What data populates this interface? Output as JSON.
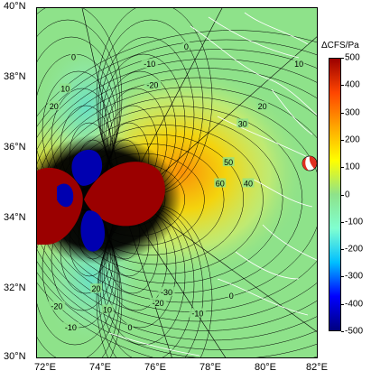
{
  "map": {
    "lat_labels": [
      "40°N",
      "38°N",
      "36°N",
      "34°N",
      "32°N",
      "30°N"
    ],
    "lon_labels": [
      "72°E",
      "74°E",
      "76°E",
      "78°E",
      "80°E",
      "82°E"
    ],
    "extent": {
      "lon_min": 72,
      "lon_max": 82,
      "lat_min": 30,
      "lat_max": 40
    },
    "background_color": "#8ee28a",
    "fault_color": "#ffffff"
  },
  "colorbar": {
    "title": "ΔCFS/Pa",
    "ticks": [
      "500",
      "400",
      "300",
      "200",
      "100",
      "0",
      "-100",
      "-200",
      "-300",
      "-400",
      "-500"
    ],
    "range": [
      -500,
      500
    ],
    "colors": [
      "#00007f",
      "#0000ff",
      "#00bfff",
      "#80ffd0",
      "#8ee28a",
      "#ffff00",
      "#ffa500",
      "#ff4500",
      "#9b0000"
    ]
  },
  "contour_labels": [
    {
      "text": "0",
      "lon": 73.3,
      "lat": 38.6
    },
    {
      "text": "10",
      "lon": 73.0,
      "lat": 37.7
    },
    {
      "text": "20",
      "lon": 72.6,
      "lat": 37.2
    },
    {
      "text": "-10",
      "lon": 76.0,
      "lat": 38.4
    },
    {
      "text": "-20",
      "lon": 76.1,
      "lat": 37.8
    },
    {
      "text": "0",
      "lon": 77.3,
      "lat": 38.9
    },
    {
      "text": "10",
      "lon": 81.3,
      "lat": 38.4
    },
    {
      "text": "20",
      "lon": 80.0,
      "lat": 37.2
    },
    {
      "text": "30",
      "lon": 79.3,
      "lat": 36.7
    },
    {
      "text": "50",
      "lon": 78.8,
      "lat": 35.6
    },
    {
      "text": "60",
      "lon": 78.5,
      "lat": 35.0
    },
    {
      "text": "40",
      "lon": 79.5,
      "lat": 35.0
    },
    {
      "text": "-30",
      "lon": 76.6,
      "lat": 31.9
    },
    {
      "text": "-20",
      "lon": 76.3,
      "lat": 31.6
    },
    {
      "text": "-10",
      "lon": 77.7,
      "lat": 31.3
    },
    {
      "text": "0",
      "lon": 78.9,
      "lat": 31.8
    },
    {
      "text": "0",
      "lon": 75.3,
      "lat": 30.9
    },
    {
      "text": "20",
      "lon": 74.1,
      "lat": 32.0
    },
    {
      "text": "10",
      "lon": 74.5,
      "lat": 31.4
    },
    {
      "text": "-20",
      "lon": 72.7,
      "lat": 31.5
    },
    {
      "text": "-10",
      "lon": 73.2,
      "lat": 30.9
    }
  ]
}
